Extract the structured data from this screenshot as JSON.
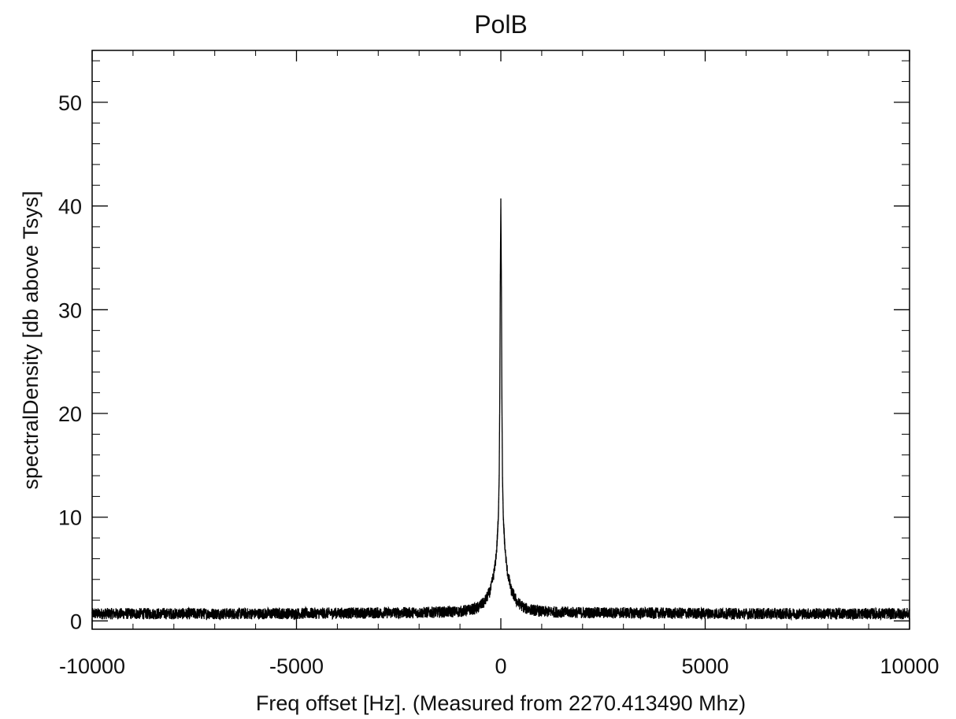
{
  "chart_data": {
    "type": "line",
    "title": "PolB",
    "xlabel": "Freq offset [Hz]. (Measured from 2270.413490 Mhz)",
    "ylabel": "spectralDensity [db above Tsys]",
    "xlim": [
      -10000,
      10000
    ],
    "ylim": [
      -0.8,
      55
    ],
    "x_ticks": [
      -10000,
      -5000,
      0,
      5000,
      10000
    ],
    "x_tick_labels": [
      "-10000",
      "-5000",
      "0",
      "5000",
      "10000"
    ],
    "y_ticks": [
      0,
      10,
      20,
      30,
      40,
      50
    ],
    "y_tick_labels": [
      "0",
      "10",
      "20",
      "30",
      "40",
      "50"
    ],
    "x_minor_step": 1000,
    "y_minor_step": 2,
    "grid": false,
    "legend": "none",
    "series": [
      {
        "color": "#000000",
        "noise_floor": 0.7,
        "noise_amplitude": 0.55,
        "x": [
          -10000,
          -8000,
          -6000,
          -4000,
          -2000,
          -1000,
          -600,
          -400,
          -250,
          -150,
          -100,
          -60,
          -40,
          -25,
          -15,
          0,
          15,
          25,
          40,
          60,
          100,
          150,
          250,
          400,
          600,
          1000,
          2000,
          4000,
          6000,
          8000,
          10000
        ],
        "y": [
          0.7,
          0.7,
          0.7,
          0.75,
          0.8,
          0.9,
          1.2,
          1.8,
          3.0,
          5.0,
          7.0,
          10.0,
          14.0,
          22.0,
          32.0,
          40.6,
          32.0,
          22.0,
          14.0,
          10.0,
          7.0,
          5.0,
          3.0,
          1.8,
          1.2,
          0.9,
          0.8,
          0.75,
          0.7,
          0.7,
          0.7
        ]
      }
    ]
  }
}
